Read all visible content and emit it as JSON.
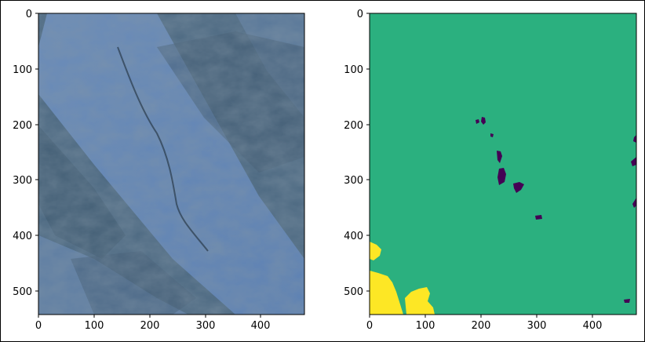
{
  "figure": {
    "left_panel": {
      "kind": "satellite-image",
      "x_ticks": [
        "0",
        "100",
        "200",
        "300",
        "400"
      ],
      "y_ticks": [
        "0",
        "100",
        "200",
        "300",
        "400",
        "500"
      ]
    },
    "right_panel": {
      "kind": "classification-mask",
      "x_ticks": [
        "0",
        "100",
        "200",
        "300",
        "400"
      ],
      "y_ticks": [
        "0",
        "100",
        "200",
        "300",
        "400",
        "500"
      ],
      "colors": {
        "background_class": "#2bb07f",
        "yellow_class": "#fde725",
        "dark_class": "#440154"
      }
    }
  }
}
